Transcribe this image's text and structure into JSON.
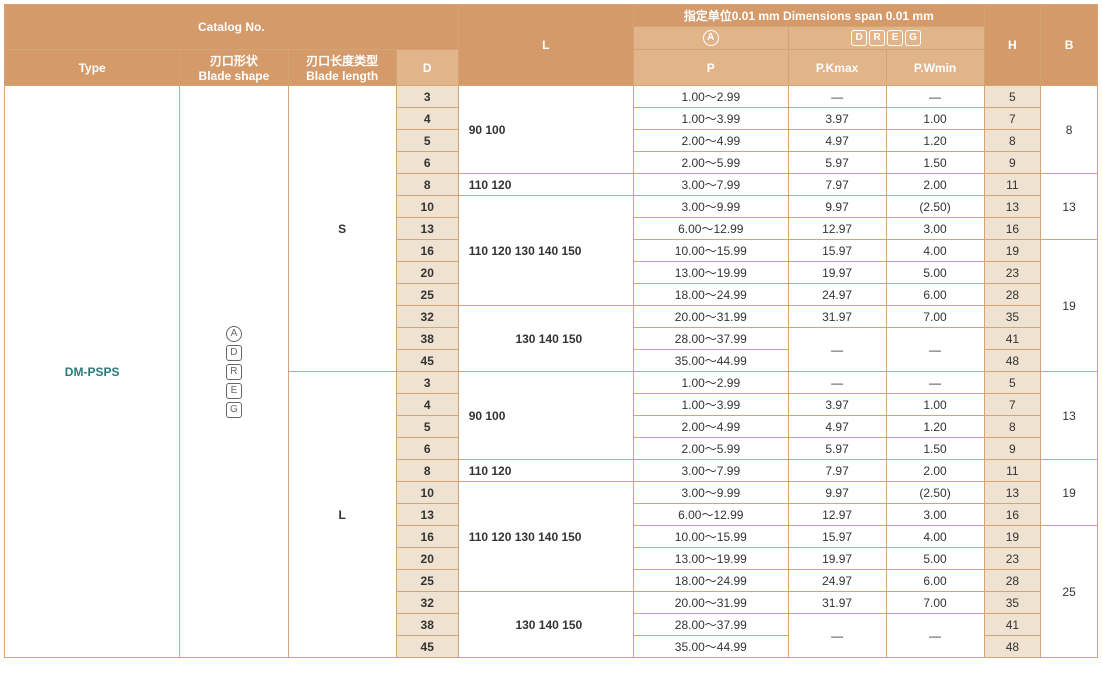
{
  "headers": {
    "catalog_no": "Catalog No.",
    "L": "L",
    "span_header": "指定单位0.01 mm Dimensions span 0.01 mm",
    "A_sym": "A",
    "DREG_sym": "D R E G",
    "H": "H",
    "B": "B",
    "type": "Type",
    "blade_shape_cn": "刃口形状",
    "blade_shape_en": "Blade shape",
    "blade_len_cn": "刃口长度类型",
    "blade_len_en": "Blade length",
    "D": "D",
    "P": "P",
    "PKmax": "P.Kmax",
    "PWmin": "P.Wmin"
  },
  "type_value": "DM-PSPS",
  "shape_syms": [
    "A",
    "D",
    "R",
    "E",
    "G"
  ],
  "blade_lengths": [
    "S",
    "L"
  ],
  "L_vals": {
    "L1": "90 100",
    "L2": "110 120",
    "L3": "110 120 130 140 150",
    "L4": "130 140 150"
  },
  "rows": [
    {
      "d": "3",
      "p": "1.00～2.99",
      "k": "—",
      "w": "—",
      "h": "5"
    },
    {
      "d": "4",
      "p": "1.00～3.99",
      "k": "3.97",
      "w": "1.00",
      "h": "7"
    },
    {
      "d": "5",
      "p": "2.00～4.99",
      "k": "4.97",
      "w": "1.20",
      "h": "8"
    },
    {
      "d": "6",
      "p": "2.00～5.99",
      "k": "5.97",
      "w": "1.50",
      "h": "9"
    },
    {
      "d": "8",
      "p": "3.00～7.99",
      "k": "7.97",
      "w": "2.00",
      "h": "11"
    },
    {
      "d": "10",
      "p": "3.00～9.99",
      "k": "9.97",
      "w": "(2.50)",
      "h": "13"
    },
    {
      "d": "13",
      "p": "6.00～12.99",
      "k": "12.97",
      "w": "3.00",
      "h": "16"
    },
    {
      "d": "16",
      "p": "10.00～15.99",
      "k": "15.97",
      "w": "4.00",
      "h": "19"
    },
    {
      "d": "20",
      "p": "13.00～19.99",
      "k": "19.97",
      "w": "5.00",
      "h": "23"
    },
    {
      "d": "25",
      "p": "18.00～24.99",
      "k": "24.97",
      "w": "6.00",
      "h": "28"
    },
    {
      "d": "32",
      "p": "20.00～31.99",
      "k": "31.97",
      "w": "7.00",
      "h": "35"
    },
    {
      "d": "38",
      "p": "28.00～37.99",
      "k": "—",
      "w": "—",
      "h": "41"
    },
    {
      "d": "45",
      "p": "35.00～44.99",
      "k": "",
      "w": "",
      "h": "48"
    }
  ],
  "B_vals": {
    "b1": "8",
    "b2": "13",
    "b3": "19",
    "b4": "13",
    "b5": "19",
    "b6": "25"
  },
  "colors": {
    "header_bg": "#d49a6a",
    "sub_bg": "#e2b48a",
    "tint_bg": "#f0e2d0",
    "border": "#d4a574",
    "type_color": "#2b7a7a"
  }
}
